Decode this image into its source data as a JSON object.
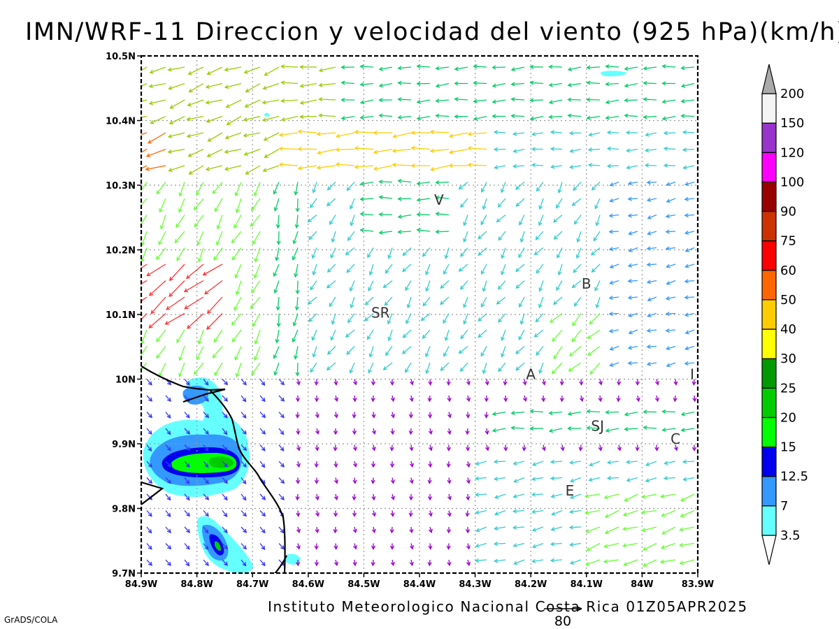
{
  "chart_data": {
    "type": "vector-field",
    "title": "IMN/WRF-11 Direccion y velocidad del viento (925 hPa)(km/h)",
    "x_ticks": [
      "84.9W",
      "84.8W",
      "84.7W",
      "84.6W",
      "84.5W",
      "84.4W",
      "84.3W",
      "84.2W",
      "84.1W",
      "84W",
      "83.9W"
    ],
    "y_ticks": [
      "10.5N",
      "10.4N",
      "10.3N",
      "10.2N",
      "10.1N",
      "10N",
      "9.9N",
      "9.8N",
      "9.7N"
    ],
    "xlim": [
      -84.9,
      -83.9
    ],
    "ylim": [
      9.7,
      10.5
    ],
    "grid": true,
    "colorbar": {
      "levels": [
        "3.5",
        "7",
        "12.5",
        "15",
        "20",
        "25",
        "30",
        "40",
        "50",
        "60",
        "75",
        "90",
        "100",
        "120",
        "150",
        "200"
      ],
      "colors": [
        "#ffffff",
        "#66ffff",
        "#3399ff",
        "#0000ee",
        "#00ff00",
        "#00cc00",
        "#009900",
        "#ffff00",
        "#ffcc00",
        "#ff6600",
        "#ff0000",
        "#cc3300",
        "#990000",
        "#ff00ff",
        "#9933cc",
        "#f4f4f4",
        "#aaaaaa"
      ]
    },
    "places": [
      {
        "label": "V",
        "lon": -84.365,
        "lat": 10.27
      },
      {
        "label": "SR",
        "lon": -84.47,
        "lat": 10.095
      },
      {
        "label": "B",
        "lon": -84.1,
        "lat": 10.14
      },
      {
        "label": "A",
        "lon": -84.2,
        "lat": 10.0
      },
      {
        "label": "I",
        "lon": -83.91,
        "lat": 10.0
      },
      {
        "label": "SJ",
        "lon": -84.08,
        "lat": 9.92
      },
      {
        "label": "C",
        "lon": -83.94,
        "lat": 9.9
      },
      {
        "label": "E",
        "lon": -84.13,
        "lat": 9.82
      }
    ],
    "reference_vector": {
      "value": "80"
    }
  },
  "footer": {
    "credit": "Instituto Meteorologico Nacional Costa Rica  01Z05APR2025",
    "grads": "GrADS/COLA"
  }
}
